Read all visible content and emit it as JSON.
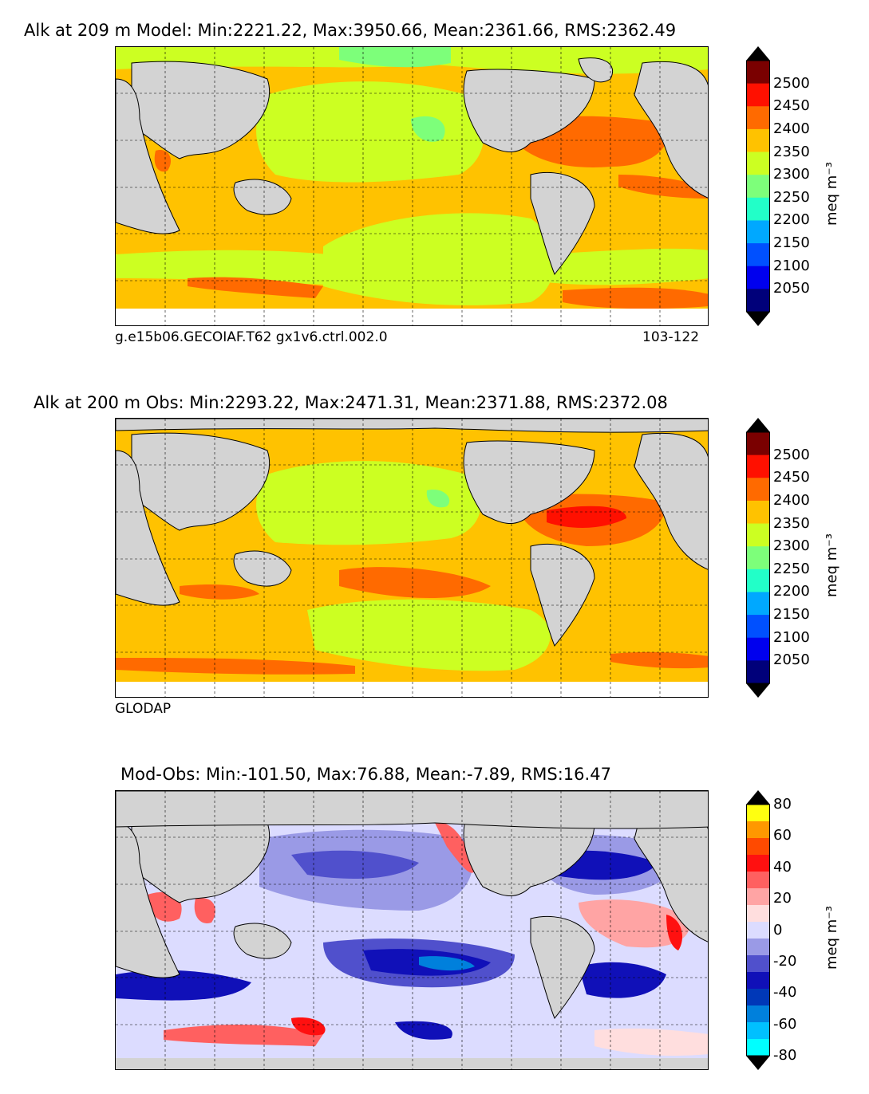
{
  "panels": [
    {
      "title": "Alk at 209 m Model: Min:2221.22, Max:3950.66, Mean:2361.66, RMS:2362.49",
      "footer_left": "g.e15b06.GECOIAF.T62 gx1v6.ctrl.002.0",
      "footer_right": "103-122",
      "colorbar": {
        "unit": "meq m⁻³",
        "ticks": [
          "2500",
          "2450",
          "2400",
          "2350",
          "2300",
          "2250",
          "2200",
          "2150",
          "2100",
          "2050"
        ],
        "colors": [
          "#7a0000",
          "#ff1000",
          "#ff6a00",
          "#ffc200",
          "#ccff22",
          "#7dff7a",
          "#22ffc8",
          "#00a8ff",
          "#0050ff",
          "#0000ee",
          "#00007a"
        ],
        "extend_colors": [
          "#000000",
          "#000000"
        ]
      }
    },
    {
      "title": "Alk at 200 m Obs: Min:2293.22, Max:2471.31, Mean:2371.88, RMS:2372.08",
      "footer_left": "GLODAP",
      "footer_right": "",
      "colorbar": {
        "unit": "meq m⁻³",
        "ticks": [
          "2500",
          "2450",
          "2400",
          "2350",
          "2300",
          "2250",
          "2200",
          "2150",
          "2100",
          "2050"
        ],
        "colors": [
          "#7a0000",
          "#ff1000",
          "#ff6a00",
          "#ffc200",
          "#ccff22",
          "#7dff7a",
          "#22ffc8",
          "#00a8ff",
          "#0050ff",
          "#0000ee",
          "#00007a"
        ],
        "extend_colors": [
          "#000000",
          "#000000"
        ]
      }
    },
    {
      "title": "Mod-Obs: Min:-101.50, Max:76.88, Mean:-7.89, RMS:16.47",
      "footer_left": "",
      "footer_right": "",
      "colorbar": {
        "unit": "meq m⁻³",
        "ticks": [
          "80",
          "60",
          "40",
          "20",
          "0",
          "-20",
          "-40",
          "-60",
          "-80"
        ],
        "colors": [
          "#ffff10",
          "#ff9800",
          "#ff4a00",
          "#ff1010",
          "#ff6060",
          "#ffa4a4",
          "#ffdede",
          "#dcdcff",
          "#9a9ae6",
          "#5050cc",
          "#1010b8",
          "#0038b8",
          "#0080dc",
          "#00c0ff",
          "#00ffff"
        ],
        "extend_colors": [
          "#000000",
          "#000000"
        ]
      }
    }
  ]
}
